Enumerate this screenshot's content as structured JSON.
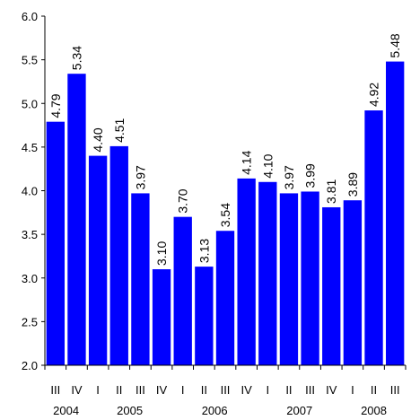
{
  "chart_data": {
    "type": "bar",
    "title": "",
    "xlabel": "",
    "ylabel": "",
    "ylim": [
      2.0,
      6.0
    ],
    "yticks": [
      "2.0",
      "2.5",
      "3.0",
      "3.5",
      "4.0",
      "4.5",
      "5.0",
      "5.5",
      "6.0"
    ],
    "grid": false,
    "bar_color": "#0000ff",
    "categories": [
      "III",
      "IV",
      "I",
      "II",
      "III",
      "IV",
      "I",
      "II",
      "III",
      "IV",
      "I",
      "II",
      "III",
      "IV",
      "I",
      "II",
      "III"
    ],
    "values": [
      4.79,
      5.34,
      4.4,
      4.51,
      3.97,
      3.1,
      3.7,
      3.13,
      3.54,
      4.14,
      4.1,
      3.97,
      3.99,
      3.81,
      3.89,
      4.92,
      5.48
    ],
    "value_labels": [
      "4.79",
      "5.34",
      "4.40",
      "4.51",
      "3.97",
      "3.10",
      "3.70",
      "3.13",
      "3.54",
      "4.14",
      "4.10",
      "3.97",
      "3.99",
      "3.81",
      "3.89",
      "4.92",
      "5.48"
    ],
    "years": [
      {
        "label": "2004",
        "start": 0,
        "end": 1
      },
      {
        "label": "2005",
        "start": 2,
        "end": 5
      },
      {
        "label": "2006",
        "start": 6,
        "end": 9
      },
      {
        "label": "2007",
        "start": 10,
        "end": 13
      },
      {
        "label": "2008",
        "start": 14,
        "end": 16
      }
    ]
  }
}
